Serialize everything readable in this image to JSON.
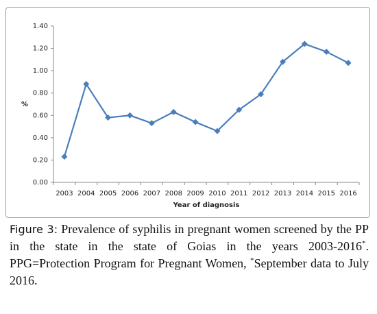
{
  "chart_data": {
    "type": "line",
    "categories": [
      "2003",
      "2004",
      "2005",
      "2006",
      "2007",
      "2008",
      "2009",
      "2010",
      "2011",
      "2012",
      "2013",
      "2014",
      "2015",
      "2016"
    ],
    "values": [
      0.23,
      0.88,
      0.58,
      0.6,
      0.53,
      0.63,
      0.54,
      0.46,
      0.65,
      0.79,
      1.08,
      1.24,
      1.17,
      1.07
    ],
    "color": "#4a7ebb",
    "ylim": [
      0,
      1.4
    ],
    "yticks": [
      {
        "value": 0,
        "label": "0.00"
      },
      {
        "value": 0.2,
        "label": "0.20"
      },
      {
        "value": 0.4,
        "label": "0.40"
      },
      {
        "value": 0.6,
        "label": "0.60"
      },
      {
        "value": 0.8,
        "label": "0.80"
      },
      {
        "value": 1.0,
        "label": "1.00"
      },
      {
        "value": 1.2,
        "label": "1.20"
      },
      {
        "value": 1.4,
        "label": "1.40"
      }
    ],
    "y_label": "%",
    "x_label": "Year of diagnosis",
    "grid": false
  },
  "caption": {
    "label": "Figure 3:",
    "text_1": " Prevalence of syphilis in pregnant women screened by the PP in the state in the state of Goias in the years 2003-2016",
    "sup_1": "*",
    "text_2": ". PPG=Protection Program for Pregnant Women, ",
    "sup_2": "*",
    "text_3": "September data to July 2016."
  }
}
